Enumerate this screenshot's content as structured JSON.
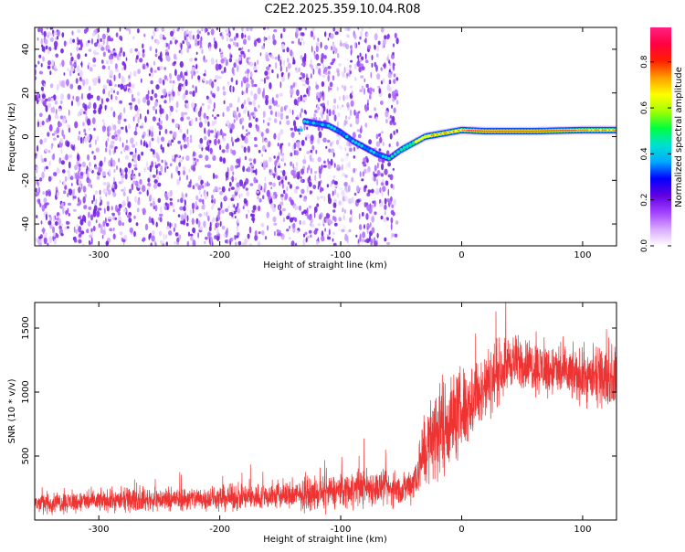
{
  "title": "C2E2.2025.359.10.04.R08",
  "chart_data": [
    {
      "type": "heatmap",
      "name": "spectrogram",
      "xlabel": "Height of straight line (km)",
      "ylabel": "Frequency (Hz)",
      "xlim": [
        -353,
        128
      ],
      "ylim": [
        -50,
        50
      ],
      "xticks": [
        -300,
        -200,
        -100,
        0,
        100
      ],
      "yticks": [
        -40,
        -20,
        0,
        20,
        40
      ],
      "noise_region_x": [
        -353,
        -53
      ],
      "signal_track": [
        {
          "x": -130,
          "freq": 7
        },
        {
          "x": -120,
          "freq": 6
        },
        {
          "x": -110,
          "freq": 5
        },
        {
          "x": -100,
          "freq": 2
        },
        {
          "x": -90,
          "freq": -2
        },
        {
          "x": -80,
          "freq": -5
        },
        {
          "x": -70,
          "freq": -8
        },
        {
          "x": -60,
          "freq": -10
        },
        {
          "x": -50,
          "freq": -6
        },
        {
          "x": -40,
          "freq": -3
        },
        {
          "x": -30,
          "freq": 0
        },
        {
          "x": -20,
          "freq": 1
        },
        {
          "x": -10,
          "freq": 2
        },
        {
          "x": 0,
          "freq": 3
        },
        {
          "x": 20,
          "freq": 2.5
        },
        {
          "x": 60,
          "freq": 2.5
        },
        {
          "x": 100,
          "freq": 3
        },
        {
          "x": 128,
          "freq": 3
        }
      ],
      "colorbar": {
        "label": "Normalized spectral amplitude",
        "range": [
          0,
          0.95
        ],
        "ticks": [
          0.0,
          0.2,
          0.4,
          0.6,
          0.8
        ],
        "tick_labels": [
          "0.0",
          "0.2",
          "0.4",
          "0.6",
          "0.8"
        ],
        "colormap": [
          "#ffffff",
          "#d8a8ff",
          "#a040ff",
          "#6000e0",
          "#0000ff",
          "#00aaff",
          "#00e0d0",
          "#00ff40",
          "#a0ff00",
          "#ffff00",
          "#ffa000",
          "#ff2000",
          "#ff0040",
          "#ff2080"
        ]
      }
    },
    {
      "type": "line",
      "name": "snr",
      "xlabel": "Height of straight line (km)",
      "ylabel": "SNR (10 * v/v)",
      "xlim": [
        -353,
        128
      ],
      "ylim": [
        0,
        1700
      ],
      "xticks": [
        -300,
        -200,
        -100,
        0,
        100
      ],
      "yticks": [
        500,
        1000,
        1500
      ],
      "color": "#ee3333",
      "envelope": [
        {
          "x": -353,
          "base": 130,
          "amp": 120
        },
        {
          "x": -300,
          "base": 150,
          "amp": 120
        },
        {
          "x": -200,
          "base": 170,
          "amp": 140
        },
        {
          "x": -120,
          "base": 200,
          "amp": 170
        },
        {
          "x": -80,
          "base": 260,
          "amp": 220
        },
        {
          "x": -50,
          "base": 230,
          "amp": 170
        },
        {
          "x": -40,
          "base": 300,
          "amp": 220
        },
        {
          "x": -30,
          "base": 550,
          "amp": 450
        },
        {
          "x": -20,
          "base": 700,
          "amp": 550
        },
        {
          "x": 0,
          "base": 850,
          "amp": 500
        },
        {
          "x": 20,
          "base": 1050,
          "amp": 400
        },
        {
          "x": 40,
          "base": 1250,
          "amp": 300
        },
        {
          "x": 60,
          "base": 1200,
          "amp": 300
        },
        {
          "x": 100,
          "base": 1120,
          "amp": 300
        },
        {
          "x": 128,
          "base": 1100,
          "amp": 300
        }
      ]
    }
  ]
}
